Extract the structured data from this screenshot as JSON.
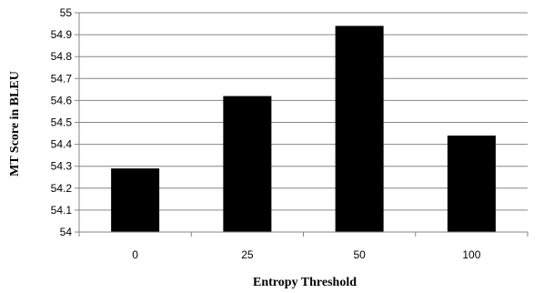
{
  "chart_data": {
    "type": "bar",
    "categories": [
      "0",
      "25",
      "50",
      "100"
    ],
    "values": [
      54.29,
      54.62,
      54.94,
      54.44
    ],
    "xlabel": "Entropy Threshold",
    "ylabel": "MT Score  in BLEU",
    "ylim": [
      54,
      55
    ],
    "yticks": [
      "54",
      "54.1",
      "54.2",
      "54.3",
      "54.4",
      "54.5",
      "54.6",
      "54.7",
      "54.8",
      "54.9",
      "55"
    ],
    "grid": true,
    "bar_color": "#000000",
    "grid_color": "#868686"
  }
}
